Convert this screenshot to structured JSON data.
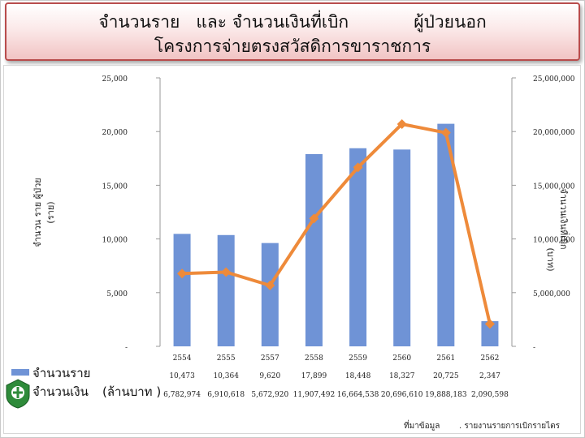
{
  "title": {
    "line1": "จำนวนราย   และ จำนวนเงินที่เบิก            ผู้ป่วยนอก",
    "line2": "โครงการจ่ายตรงสวัสดิการขาราชการ"
  },
  "left_axis_label_lines": [
    "จํานวน ราย ผู้ป่วย",
    "(ราย)"
  ],
  "right_axis_label_lines": [
    "จํานวนเงินที่เบิก",
    "(บาท)"
  ],
  "legend": {
    "series_1": "จำนวนราย",
    "series_2": "จำนวนเงิน",
    "series_2_unit": "(ล้านบาท  )"
  },
  "footer": {
    "source_label": "ที่มาข้อมูล",
    "source_text": ". รายงานรายการเบิกรายไตร"
  },
  "colors": {
    "bars": "#6f93d6",
    "line": "#ee8a3a",
    "markers": "#ee8a3a"
  },
  "chart_data": {
    "type": "bar",
    "categories": [
      "2554",
      "2555",
      "2557",
      "2558",
      "2559",
      "2560",
      "2561",
      "2562"
    ],
    "series": [
      {
        "name": "จำนวนราย",
        "type": "bar",
        "axis": "left",
        "values": [
          10473,
          10364,
          9620,
          17899,
          18448,
          18327,
          20725,
          2347
        ],
        "labels": [
          "10,473",
          "10,364",
          "9,620",
          "17,899",
          "18,448",
          "18,327",
          "20,725",
          "2,347"
        ]
      },
      {
        "name": "จำนวนเงิน",
        "type": "line",
        "axis": "right",
        "values": [
          6782974,
          6910618,
          5672920,
          11907492,
          16664538,
          20696610,
          19888183,
          2090598
        ],
        "labels": [
          "6,782,974",
          "6,910,618",
          "5,672,920",
          "11,907,492",
          "16,664,538",
          "20,696,610",
          "19,888,183",
          "2,090,598"
        ]
      }
    ],
    "left_axis": {
      "ylim": [
        0,
        25000
      ],
      "ticks": [
        0,
        5000,
        10000,
        15000,
        20000,
        25000
      ],
      "tick_labels": [
        "-",
        "5,000",
        "10,000",
        "15,000",
        "20,000",
        "25,000"
      ]
    },
    "right_axis": {
      "ylim": [
        0,
        25000000
      ],
      "ticks": [
        0,
        5000000,
        10000000,
        15000000,
        20000000,
        25000000
      ],
      "tick_labels": [
        "-",
        "5,000,000",
        "10,000,000",
        "15,000,000",
        "20,000,000",
        "25,000,000"
      ]
    },
    "grid": false,
    "legend": "bottom-left data table"
  }
}
